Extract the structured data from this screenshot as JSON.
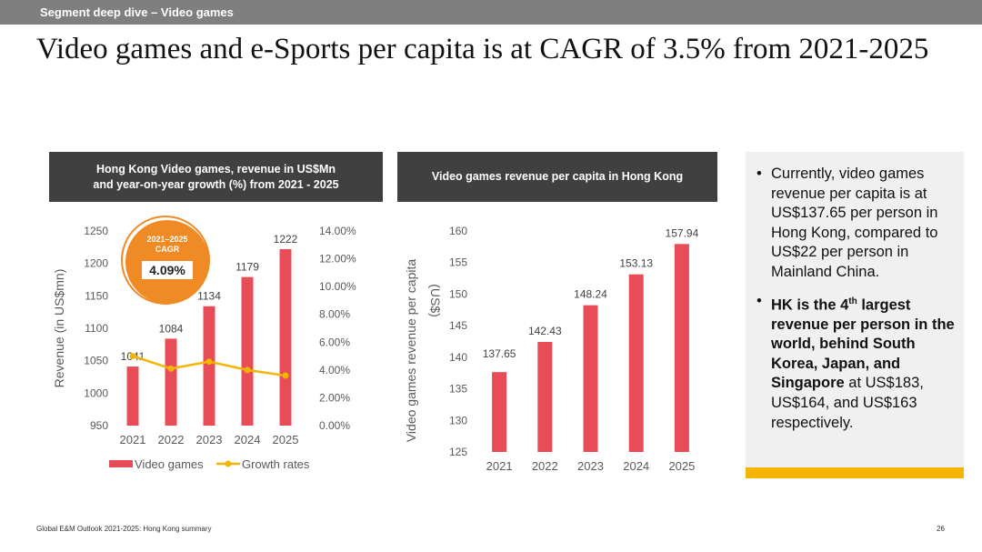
{
  "header": {
    "section": "Segment deep dive –  Video games",
    "title": "Video games and e-Sports per capita is at CAGR of 3.5% from 2021-2025"
  },
  "chart_data": [
    {
      "type": "bar",
      "title": "Hong Kong Video games, revenue in US$Mn\nand year-on-year growth (%) from 2021 - 2025",
      "categories": [
        "2021",
        "2022",
        "2023",
        "2024",
        "2025"
      ],
      "series": [
        {
          "name": "Video games",
          "type": "bar",
          "axis": "left",
          "values": [
            1041,
            1084,
            1134,
            1179,
            1222
          ],
          "color": "#e84c57"
        },
        {
          "name": "Growth rates",
          "type": "line",
          "axis": "right",
          "values": [
            5.0,
            4.1,
            4.6,
            4.0,
            3.6
          ],
          "color": "#f5b400"
        }
      ],
      "ylabel": "Revenue (in US$mn)",
      "ylim": [
        950,
        1250
      ],
      "yticks": [
        "1250",
        "1200",
        "1150",
        "1100",
        "1050",
        "1000",
        "950"
      ],
      "y2lim": [
        0,
        14
      ],
      "y2ticks": [
        "14.00%",
        "12.00%",
        "10.00%",
        "8.00%",
        "6.00%",
        "4.00%",
        "2.00%",
        "0.00%"
      ],
      "legend": "bottom",
      "grid": false,
      "annotation": {
        "label": "2021–2025\nCAGR",
        "value": "4.09%",
        "color": "#f08a24"
      }
    },
    {
      "type": "bar",
      "title": "Video games revenue per capita in Hong Kong",
      "categories": [
        "2021",
        "2022",
        "2023",
        "2024",
        "2025"
      ],
      "series": [
        {
          "values": [
            137.65,
            142.43,
            148.24,
            153.13,
            157.94
          ],
          "color": "#e84c57"
        }
      ],
      "value_labels": [
        "137.65",
        "142.43",
        "148.24",
        "153.13",
        "157.94"
      ],
      "ylabel": "Video games revenue per capita\n(US$)",
      "ylim": [
        125,
        160
      ],
      "yticks": [
        "160",
        "155",
        "150",
        "145",
        "140",
        "135",
        "130",
        "125"
      ],
      "grid": false
    }
  ],
  "panel": {
    "bullet1": "Currently, video games revenue per capita is at US$137.65 per person in Hong Kong, compared to US$22 per person in Mainland China.",
    "bullet2_bold_a": "HK is the 4",
    "bullet2_sup": "th",
    "bullet2_bold_b": " largest revenue per person in the world, behind South Korea, Japan, and Singapore",
    "bullet2_rest": " at US$183, US$164, and US$163 respectively.",
    "bullet_glyph": "•",
    "accent_color": "#f5b400"
  },
  "footer": {
    "source": "Global E&M Outlook 2021-2025: Hong Kong summary",
    "page": "26"
  }
}
